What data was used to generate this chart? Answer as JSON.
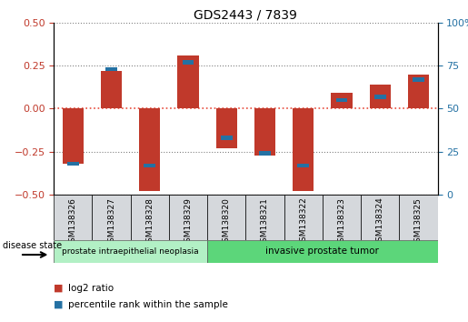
{
  "title": "GDS2443 / 7839",
  "samples": [
    "GSM138326",
    "GSM138327",
    "GSM138328",
    "GSM138329",
    "GSM138320",
    "GSM138321",
    "GSM138322",
    "GSM138323",
    "GSM138324",
    "GSM138325"
  ],
  "log2_ratios": [
    -0.32,
    0.22,
    -0.48,
    0.31,
    -0.23,
    -0.27,
    -0.48,
    0.09,
    0.14,
    0.2
  ],
  "percentile_ranks": [
    18,
    73,
    17,
    77,
    33,
    24,
    17,
    55,
    57,
    67
  ],
  "ylim": [
    -0.5,
    0.5
  ],
  "yticks_left": [
    -0.5,
    -0.25,
    0,
    0.25,
    0.5
  ],
  "yticks_right": [
    0,
    25,
    50,
    75,
    100
  ],
  "bar_color": "#c0392b",
  "percentile_color": "#2471a3",
  "bar_width": 0.55,
  "hline_color": "#e74c3c",
  "grid_color": "#000000",
  "grid_alpha": 0.5,
  "group1_label": "prostate intraepithelial neoplasia",
  "group2_label": "invasive prostate tumor",
  "group1_indices": [
    0,
    1,
    2,
    3
  ],
  "group2_indices": [
    4,
    5,
    6,
    7,
    8,
    9
  ],
  "group1_color": "#b2f0c5",
  "group2_color": "#5cd67a",
  "disease_state_label": "disease state",
  "legend_red_label": "log2 ratio",
  "legend_blue_label": "percentile rank within the sample",
  "background_color": "#ffffff",
  "tick_label_color_left": "#c0392b",
  "tick_label_color_right": "#2471a3"
}
